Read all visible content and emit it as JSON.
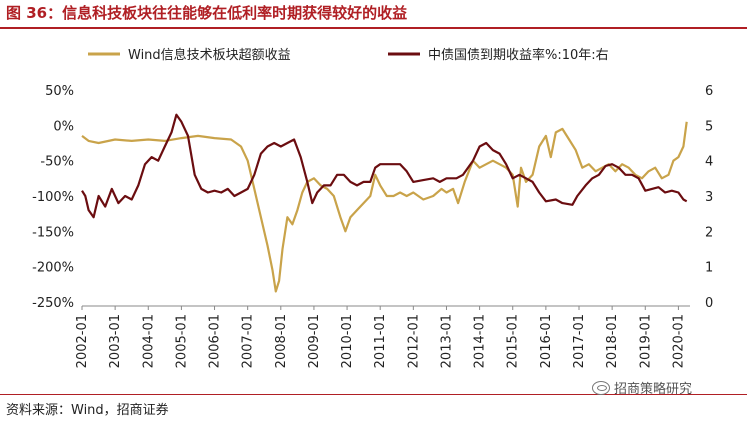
{
  "header": {
    "title": "图 36：信息科技板块往往能够在低利率时期获得较好的收益"
  },
  "footer": {
    "source": "资料来源：Wind，招商证券",
    "watermark": "招商策略研究"
  },
  "colors": {
    "title": "#b01f24",
    "series_excess": "#c9a34a",
    "series_yield": "#6b0d10"
  },
  "chart_data": {
    "type": "line",
    "title": "",
    "xlabel": "",
    "ylabel": "",
    "x_range": [
      2002.0,
      2020.35
    ],
    "x_ticks": [
      "2002-01",
      "2003-01",
      "2004-01",
      "2005-01",
      "2006-01",
      "2007-01",
      "2008-01",
      "2009-01",
      "2010-01",
      "2011-01",
      "2012-01",
      "2013-01",
      "2014-01",
      "2015-01",
      "2016-01",
      "2017-01",
      "2018-01",
      "2019-01",
      "2020-01"
    ],
    "y_left": {
      "range": [
        -2.5,
        0.5
      ],
      "ticks": [
        "50%",
        "0%",
        "-50%",
        "-100%",
        "-150%",
        "-200%",
        "-250%"
      ],
      "tick_values": [
        0.5,
        0,
        -0.5,
        -1.0,
        -1.5,
        -2.0,
        -2.5
      ]
    },
    "y_right": {
      "range": [
        0,
        6
      ],
      "ticks": [
        "6",
        "5",
        "4",
        "3",
        "2",
        "1",
        "0"
      ],
      "tick_values": [
        6,
        5,
        4,
        3,
        2,
        1,
        0
      ]
    },
    "legend": {
      "placement": "top"
    },
    "series": [
      {
        "name": "Wind信息技术板块超额收益",
        "axis": "left",
        "color": "#c9a34a",
        "points": [
          [
            2002.0,
            -0.15
          ],
          [
            2002.2,
            -0.22
          ],
          [
            2002.5,
            -0.25
          ],
          [
            2003.0,
            -0.2
          ],
          [
            2003.5,
            -0.22
          ],
          [
            2004.0,
            -0.2
          ],
          [
            2004.5,
            -0.22
          ],
          [
            2005.0,
            -0.18
          ],
          [
            2005.5,
            -0.15
          ],
          [
            2006.0,
            -0.18
          ],
          [
            2006.5,
            -0.2
          ],
          [
            2006.8,
            -0.3
          ],
          [
            2007.0,
            -0.5
          ],
          [
            2007.2,
            -0.9
          ],
          [
            2007.4,
            -1.3
          ],
          [
            2007.6,
            -1.7
          ],
          [
            2007.75,
            -2.05
          ],
          [
            2007.85,
            -2.35
          ],
          [
            2007.95,
            -2.2
          ],
          [
            2008.05,
            -1.75
          ],
          [
            2008.2,
            -1.3
          ],
          [
            2008.35,
            -1.4
          ],
          [
            2008.5,
            -1.2
          ],
          [
            2008.65,
            -0.95
          ],
          [
            2008.8,
            -0.8
          ],
          [
            2009.0,
            -0.75
          ],
          [
            2009.2,
            -0.85
          ],
          [
            2009.4,
            -0.9
          ],
          [
            2009.6,
            -1.0
          ],
          [
            2009.8,
            -1.3
          ],
          [
            2009.95,
            -1.5
          ],
          [
            2010.1,
            -1.3
          ],
          [
            2010.3,
            -1.2
          ],
          [
            2010.5,
            -1.1
          ],
          [
            2010.7,
            -1.0
          ],
          [
            2010.85,
            -0.7
          ],
          [
            2011.0,
            -0.85
          ],
          [
            2011.2,
            -1.0
          ],
          [
            2011.4,
            -1.0
          ],
          [
            2011.6,
            -0.95
          ],
          [
            2011.8,
            -1.0
          ],
          [
            2012.0,
            -0.95
          ],
          [
            2012.3,
            -1.05
          ],
          [
            2012.6,
            -1.0
          ],
          [
            2012.85,
            -0.9
          ],
          [
            2013.0,
            -0.95
          ],
          [
            2013.2,
            -0.9
          ],
          [
            2013.35,
            -1.1
          ],
          [
            2013.55,
            -0.8
          ],
          [
            2013.8,
            -0.5
          ],
          [
            2014.0,
            -0.6
          ],
          [
            2014.2,
            -0.55
          ],
          [
            2014.4,
            -0.5
          ],
          [
            2014.6,
            -0.55
          ],
          [
            2014.8,
            -0.6
          ],
          [
            2015.0,
            -0.7
          ],
          [
            2015.15,
            -1.15
          ],
          [
            2015.25,
            -0.6
          ],
          [
            2015.4,
            -0.8
          ],
          [
            2015.6,
            -0.7
          ],
          [
            2015.8,
            -0.3
          ],
          [
            2016.0,
            -0.15
          ],
          [
            2016.15,
            -0.45
          ],
          [
            2016.3,
            -0.1
          ],
          [
            2016.5,
            -0.05
          ],
          [
            2016.7,
            -0.2
          ],
          [
            2016.9,
            -0.35
          ],
          [
            2017.1,
            -0.6
          ],
          [
            2017.3,
            -0.55
          ],
          [
            2017.5,
            -0.65
          ],
          [
            2017.7,
            -0.6
          ],
          [
            2017.9,
            -0.55
          ],
          [
            2018.1,
            -0.65
          ],
          [
            2018.3,
            -0.55
          ],
          [
            2018.5,
            -0.6
          ],
          [
            2018.7,
            -0.7
          ],
          [
            2018.9,
            -0.75
          ],
          [
            2019.1,
            -0.65
          ],
          [
            2019.3,
            -0.6
          ],
          [
            2019.5,
            -0.75
          ],
          [
            2019.7,
            -0.7
          ],
          [
            2019.85,
            -0.5
          ],
          [
            2020.0,
            -0.45
          ],
          [
            2020.15,
            -0.3
          ],
          [
            2020.25,
            0.05
          ]
        ]
      },
      {
        "name": "中债国债到期收益率%:10年:右",
        "axis": "right",
        "color": "#6b0d10",
        "points": [
          [
            2002.0,
            3.15
          ],
          [
            2002.1,
            3.0
          ],
          [
            2002.2,
            2.6
          ],
          [
            2002.35,
            2.4
          ],
          [
            2002.5,
            3.0
          ],
          [
            2002.7,
            2.7
          ],
          [
            2002.9,
            3.2
          ],
          [
            2003.1,
            2.8
          ],
          [
            2003.3,
            3.0
          ],
          [
            2003.5,
            2.9
          ],
          [
            2003.7,
            3.3
          ],
          [
            2003.9,
            3.9
          ],
          [
            2004.1,
            4.1
          ],
          [
            2004.3,
            4.0
          ],
          [
            2004.5,
            4.4
          ],
          [
            2004.7,
            4.8
          ],
          [
            2004.85,
            5.3
          ],
          [
            2005.0,
            5.1
          ],
          [
            2005.2,
            4.7
          ],
          [
            2005.4,
            3.6
          ],
          [
            2005.6,
            3.2
          ],
          [
            2005.8,
            3.1
          ],
          [
            2006.0,
            3.15
          ],
          [
            2006.2,
            3.1
          ],
          [
            2006.4,
            3.2
          ],
          [
            2006.6,
            3.0
          ],
          [
            2006.8,
            3.1
          ],
          [
            2007.0,
            3.2
          ],
          [
            2007.2,
            3.6
          ],
          [
            2007.4,
            4.2
          ],
          [
            2007.6,
            4.4
          ],
          [
            2007.8,
            4.5
          ],
          [
            2008.0,
            4.4
          ],
          [
            2008.2,
            4.5
          ],
          [
            2008.4,
            4.6
          ],
          [
            2008.6,
            4.1
          ],
          [
            2008.8,
            3.4
          ],
          [
            2008.95,
            2.8
          ],
          [
            2009.1,
            3.1
          ],
          [
            2009.3,
            3.3
          ],
          [
            2009.5,
            3.3
          ],
          [
            2009.7,
            3.6
          ],
          [
            2009.9,
            3.6
          ],
          [
            2010.1,
            3.4
          ],
          [
            2010.3,
            3.3
          ],
          [
            2010.5,
            3.4
          ],
          [
            2010.7,
            3.4
          ],
          [
            2010.85,
            3.8
          ],
          [
            2011.0,
            3.9
          ],
          [
            2011.3,
            3.9
          ],
          [
            2011.6,
            3.9
          ],
          [
            2011.8,
            3.7
          ],
          [
            2012.0,
            3.4
          ],
          [
            2012.3,
            3.45
          ],
          [
            2012.6,
            3.5
          ],
          [
            2012.8,
            3.4
          ],
          [
            2013.0,
            3.5
          ],
          [
            2013.3,
            3.5
          ],
          [
            2013.5,
            3.6
          ],
          [
            2013.8,
            4.0
          ],
          [
            2014.0,
            4.4
          ],
          [
            2014.2,
            4.5
          ],
          [
            2014.4,
            4.3
          ],
          [
            2014.6,
            4.2
          ],
          [
            2014.8,
            3.9
          ],
          [
            2015.0,
            3.5
          ],
          [
            2015.2,
            3.6
          ],
          [
            2015.4,
            3.5
          ],
          [
            2015.6,
            3.4
          ],
          [
            2015.8,
            3.1
          ],
          [
            2016.0,
            2.85
          ],
          [
            2016.3,
            2.9
          ],
          [
            2016.5,
            2.8
          ],
          [
            2016.8,
            2.75
          ],
          [
            2016.95,
            3.0
          ],
          [
            2017.2,
            3.3
          ],
          [
            2017.4,
            3.5
          ],
          [
            2017.6,
            3.6
          ],
          [
            2017.8,
            3.85
          ],
          [
            2018.0,
            3.9
          ],
          [
            2018.2,
            3.8
          ],
          [
            2018.4,
            3.6
          ],
          [
            2018.6,
            3.6
          ],
          [
            2018.8,
            3.5
          ],
          [
            2019.0,
            3.15
          ],
          [
            2019.2,
            3.2
          ],
          [
            2019.4,
            3.25
          ],
          [
            2019.6,
            3.1
          ],
          [
            2019.8,
            3.15
          ],
          [
            2020.0,
            3.1
          ],
          [
            2020.15,
            2.9
          ],
          [
            2020.25,
            2.85
          ]
        ]
      }
    ]
  }
}
